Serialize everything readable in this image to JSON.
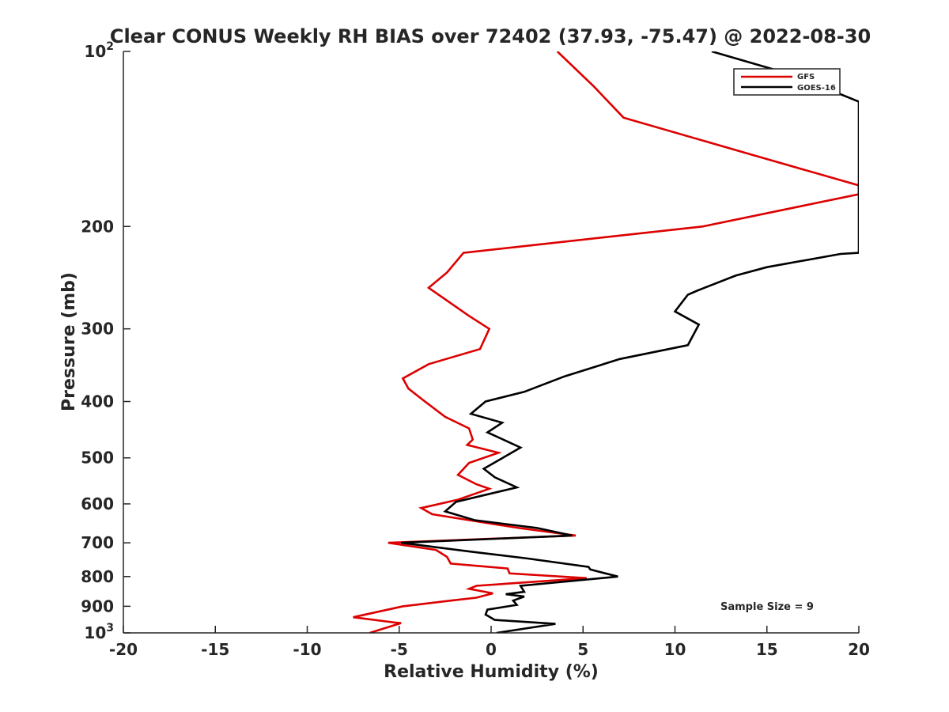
{
  "chart_data": {
    "type": "line",
    "title": "Clear CONUS Weekly RH BIAS over 72402 (37.93, -75.47) @ 2022-08-30",
    "xlabel": "Relative Humidity (%)",
    "ylabel": "Pressure (mb)",
    "xlim": [
      -20,
      20
    ],
    "ylim": [
      100,
      1000
    ],
    "y_scale": "log",
    "y_direction": "reversed",
    "x_ticks": [
      -20,
      -15,
      -10,
      -5,
      0,
      5,
      10,
      15,
      20
    ],
    "x_tick_labels": [
      "-20",
      "-15",
      "-10",
      "-5",
      "0",
      "5",
      "10",
      "15",
      "20"
    ],
    "y_ticks": [
      {
        "value": 100,
        "base": "10",
        "exp": "2"
      },
      {
        "value": 200,
        "label": "200"
      },
      {
        "value": 300,
        "label": "300"
      },
      {
        "value": 400,
        "label": "400"
      },
      {
        "value": 500,
        "label": "500"
      },
      {
        "value": 600,
        "label": "600"
      },
      {
        "value": 700,
        "label": "700"
      },
      {
        "value": 800,
        "label": "800"
      },
      {
        "value": 900,
        "label": "900"
      },
      {
        "value": 1000,
        "base": "10",
        "exp": "3"
      }
    ],
    "legend": {
      "position": "top-right"
    },
    "annotation": "Sample Size = 9",
    "series": [
      {
        "name": "GFS",
        "color": "#dd0000",
        "points": [
          [
            3.6,
            100
          ],
          [
            5.6,
            115
          ],
          [
            7.2,
            130
          ],
          [
            14,
            150
          ],
          [
            20,
            170
          ],
          [
            20,
            176
          ],
          [
            11.5,
            200
          ],
          [
            -1.5,
            222
          ],
          [
            -2.4,
            240
          ],
          [
            -3.4,
            255
          ],
          [
            -1.2,
            285
          ],
          [
            -0.1,
            300
          ],
          [
            -0.6,
            325
          ],
          [
            -3.4,
            345
          ],
          [
            -4.8,
            365
          ],
          [
            -4.5,
            380
          ],
          [
            -3.6,
            400
          ],
          [
            -2.5,
            425
          ],
          [
            -1.2,
            445
          ],
          [
            -1.0,
            465
          ],
          [
            -1.3,
            475
          ],
          [
            0.4,
            490
          ],
          [
            -1.2,
            510
          ],
          [
            -1.8,
            535
          ],
          [
            -0.8,
            555
          ],
          [
            -0.1,
            565
          ],
          [
            -1.8,
            590
          ],
          [
            -3.8,
            610
          ],
          [
            -3.2,
            625
          ],
          [
            -1.2,
            640
          ],
          [
            1.5,
            660
          ],
          [
            4.6,
            680
          ],
          [
            -5.6,
            700
          ],
          [
            -3.0,
            720
          ],
          [
            -2.4,
            740
          ],
          [
            -2.2,
            760
          ],
          [
            0.9,
            775
          ],
          [
            1.0,
            790
          ],
          [
            5.2,
            805
          ],
          [
            -0.8,
            830
          ],
          [
            -1.2,
            840
          ],
          [
            0.1,
            855
          ],
          [
            -0.8,
            870
          ],
          [
            -2.2,
            880
          ],
          [
            -4.8,
            900
          ],
          [
            -7.5,
            940
          ],
          [
            -5.2,
            960
          ],
          [
            -4.9,
            962
          ],
          [
            -6.6,
            1000
          ]
        ]
      },
      {
        "name": "GOES-16",
        "color": "#000000",
        "points": [
          [
            12,
            100
          ],
          [
            16.5,
            110
          ],
          [
            20,
            122
          ],
          [
            20,
            222
          ],
          [
            19.0,
            223
          ],
          [
            15.0,
            235
          ],
          [
            13.3,
            243
          ],
          [
            11.2,
            258
          ],
          [
            10.7,
            262
          ],
          [
            10.0,
            280
          ],
          [
            11.3,
            295
          ],
          [
            10.7,
            320
          ],
          [
            7.0,
            338
          ],
          [
            4.0,
            362
          ],
          [
            1.8,
            385
          ],
          [
            -0.3,
            400
          ],
          [
            -1.1,
            420
          ],
          [
            0.6,
            435
          ],
          [
            -0.2,
            452
          ],
          [
            1.6,
            480
          ],
          [
            0.4,
            505
          ],
          [
            -0.4,
            522
          ],
          [
            0.2,
            540
          ],
          [
            1.4,
            562
          ],
          [
            -1.9,
            595
          ],
          [
            -2.5,
            618
          ],
          [
            -0.9,
            640
          ],
          [
            2.5,
            660
          ],
          [
            4.4,
            680
          ],
          [
            -4.9,
            700
          ],
          [
            -1.1,
            725
          ],
          [
            2.0,
            745
          ],
          [
            5.3,
            770
          ],
          [
            5.4,
            778
          ],
          [
            6.9,
            800
          ],
          [
            1.6,
            830
          ],
          [
            1.8,
            850
          ],
          [
            0.8,
            858
          ],
          [
            1.8,
            866
          ],
          [
            1.2,
            880
          ],
          [
            1.4,
            895
          ],
          [
            -0.2,
            912
          ],
          [
            -0.3,
            930
          ],
          [
            0.2,
            950
          ],
          [
            3.5,
            965
          ],
          [
            0.3,
            1000
          ]
        ]
      }
    ]
  }
}
